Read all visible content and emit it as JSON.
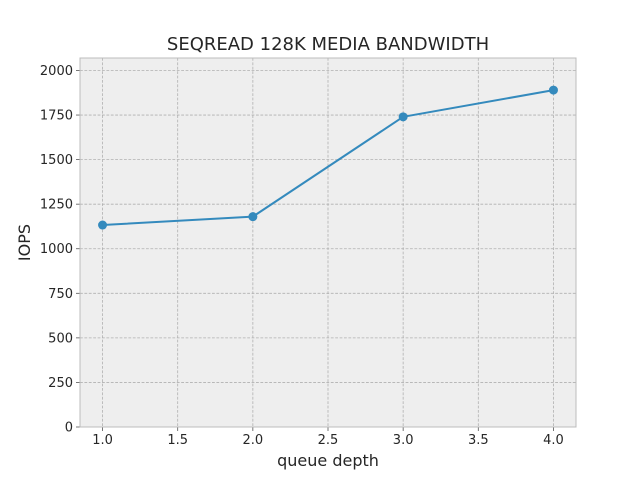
{
  "chart_data": {
    "type": "line",
    "title": "SEQREAD 128K MEDIA BANDWIDTH",
    "xlabel": "queue depth",
    "ylabel": "IOPS",
    "xlim": [
      0.85,
      4.15
    ],
    "ylim": [
      0,
      2070
    ],
    "xticks": [
      1.0,
      1.5,
      2.0,
      2.5,
      3.0,
      3.5,
      4.0
    ],
    "xtick_labels": [
      "1.0",
      "1.5",
      "2.0",
      "2.5",
      "3.0",
      "3.5",
      "4.0"
    ],
    "yticks": [
      0,
      250,
      500,
      750,
      1000,
      1250,
      1500,
      1750,
      2000
    ],
    "ytick_labels": [
      "0",
      "250",
      "500",
      "750",
      "1000",
      "1250",
      "1500",
      "1750",
      "2000"
    ],
    "grid": true,
    "series": [
      {
        "name": "IOPS",
        "color": "#348abd",
        "x": [
          1.0,
          2.0,
          3.0,
          4.0
        ],
        "values": [
          1133,
          1180,
          1740,
          1890
        ]
      }
    ]
  },
  "colors": {
    "plot_background": "#eeeeee",
    "axes_edge": "#bcbcbc",
    "line": "#348abd"
  }
}
